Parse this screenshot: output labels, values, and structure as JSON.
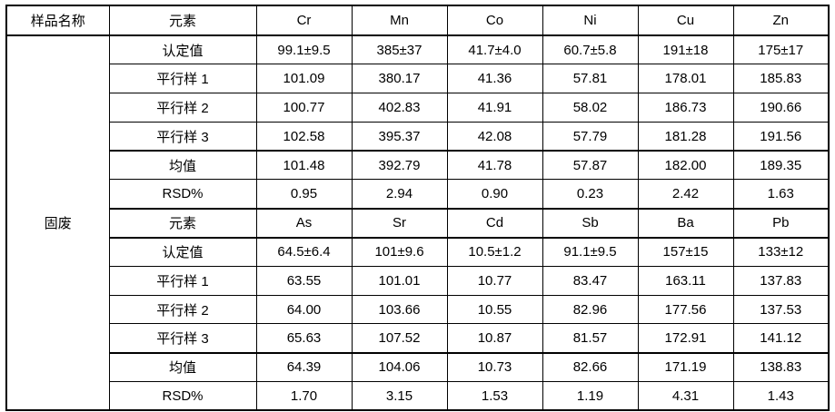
{
  "table": {
    "header": {
      "sample_col": "样品名称",
      "element_col": "元素"
    },
    "sample_name": "固废",
    "sections": [
      {
        "elements": [
          "Cr",
          "Mn",
          "Co",
          "Ni",
          "Cu",
          "Zn"
        ],
        "rows": [
          {
            "label": "认定值",
            "emphasis": true,
            "values": [
              "99.1±9.5",
              "385±37",
              "41.7±4.0",
              "60.7±5.8",
              "191±18",
              "175±17"
            ]
          },
          {
            "label": "平行样 1",
            "emphasis": false,
            "values": [
              "101.09",
              "380.17",
              "41.36",
              "57.81",
              "178.01",
              "185.83"
            ]
          },
          {
            "label": "平行样 2",
            "emphasis": false,
            "values": [
              "100.77",
              "402.83",
              "41.91",
              "58.02",
              "186.73",
              "190.66"
            ]
          },
          {
            "label": "平行样 3",
            "emphasis": false,
            "values": [
              "102.58",
              "395.37",
              "42.08",
              "57.79",
              "181.28",
              "191.56"
            ]
          },
          {
            "label": "均值",
            "emphasis": true,
            "values": [
              "101.48",
              "392.79",
              "41.78",
              "57.87",
              "182.00",
              "189.35"
            ]
          },
          {
            "label": "RSD%",
            "emphasis": false,
            "values": [
              "0.95",
              "2.94",
              "0.90",
              "0.23",
              "2.42",
              "1.63"
            ]
          }
        ]
      },
      {
        "row_header": "元素",
        "elements": [
          "As",
          "Sr",
          "Cd",
          "Sb",
          "Ba",
          "Pb"
        ],
        "rows": [
          {
            "label": "认定值",
            "emphasis": true,
            "values": [
              "64.5±6.4",
              "101±9.6",
              "10.5±1.2",
              "91.1±9.5",
              "157±15",
              "133±12"
            ]
          },
          {
            "label": "平行样 1",
            "emphasis": false,
            "values": [
              "63.55",
              "101.01",
              "10.77",
              "83.47",
              "163.11",
              "137.83"
            ]
          },
          {
            "label": "平行样 2",
            "emphasis": false,
            "values": [
              "64.00",
              "103.66",
              "10.55",
              "82.96",
              "177.56",
              "137.53"
            ]
          },
          {
            "label": "平行样 3",
            "emphasis": false,
            "values": [
              "65.63",
              "107.52",
              "10.87",
              "81.57",
              "172.91",
              "141.12"
            ]
          },
          {
            "label": "均值",
            "emphasis": true,
            "values": [
              "64.39",
              "104.06",
              "10.73",
              "82.66",
              "171.19",
              "138.83"
            ]
          },
          {
            "label": "RSD%",
            "emphasis": false,
            "values": [
              "1.70",
              "3.15",
              "1.53",
              "1.19",
              "4.31",
              "1.43"
            ]
          }
        ]
      }
    ]
  }
}
